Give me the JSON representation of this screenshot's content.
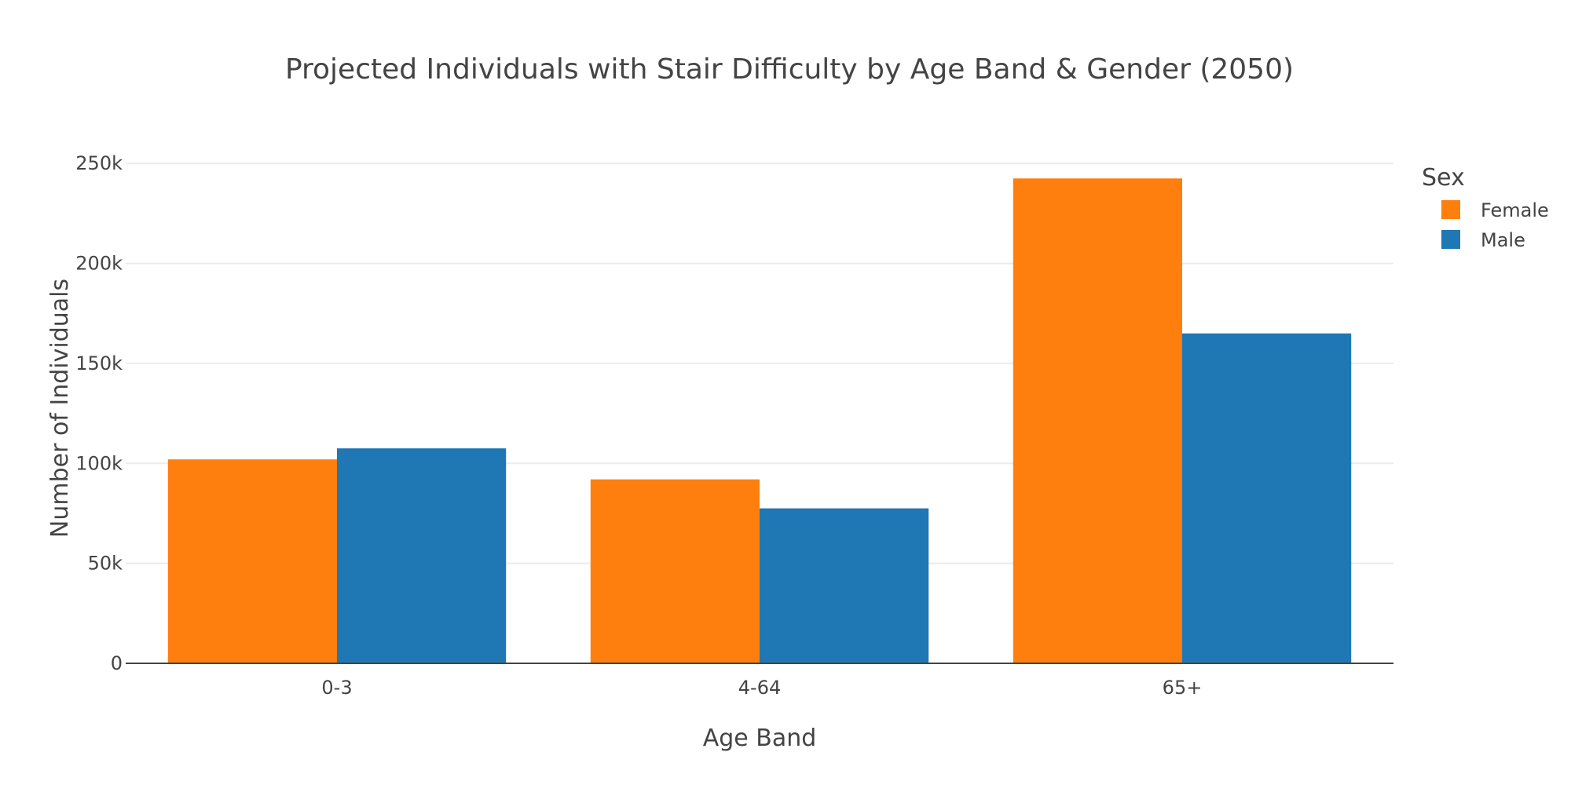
{
  "chart_data": {
    "type": "bar",
    "title": "Projected Individuals with Stair Difficulty by Age Band & Gender (2050)",
    "xlabel": "Age Band",
    "ylabel": "Number of Individuals",
    "categories": [
      "0-3",
      "4-64",
      "65+"
    ],
    "series": [
      {
        "name": "Female",
        "color": "#ff7f0e",
        "values": [
          102000,
          92000,
          242500
        ]
      },
      {
        "name": "Male",
        "color": "#1f77b4",
        "values": [
          107500,
          77500,
          165000
        ]
      }
    ],
    "ylim": [
      0,
      265000
    ],
    "yticks": [
      0,
      50000,
      100000,
      150000,
      200000,
      250000
    ],
    "ytick_labels": [
      "0",
      "50k",
      "100k",
      "150k",
      "200k",
      "250k"
    ],
    "grid": true,
    "legend": {
      "title": "Sex",
      "placement": "top-right"
    }
  }
}
